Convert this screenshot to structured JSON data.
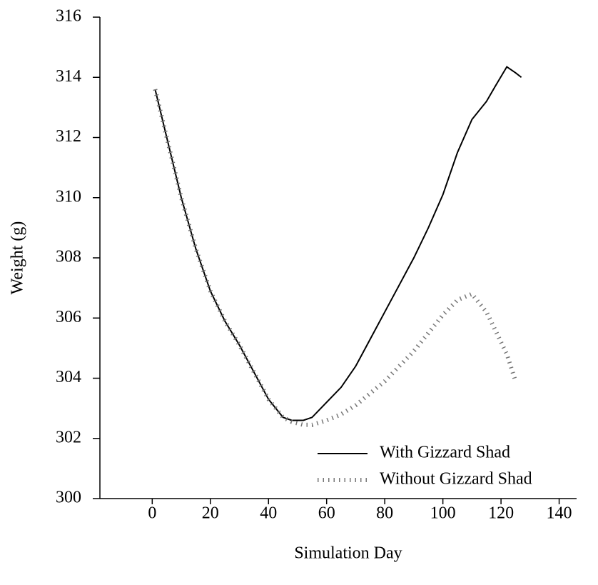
{
  "chart_data": {
    "type": "line",
    "x_label": "Simulation Day",
    "y_label": "Weight (g)",
    "x": [
      1,
      5,
      10,
      15,
      20,
      25,
      30,
      35,
      40,
      45,
      48,
      52,
      55,
      60,
      65,
      70,
      75,
      80,
      85,
      90,
      95,
      100,
      105,
      110,
      115,
      118,
      122,
      125,
      127
    ],
    "series": [
      {
        "name": "With Gizzard Shad",
        "color": "#000000",
        "style": "solid",
        "values": [
          313.6,
          312.0,
          310.0,
          308.3,
          306.9,
          305.9,
          305.1,
          304.2,
          303.3,
          302.7,
          302.6,
          302.6,
          302.7,
          303.2,
          303.7,
          304.4,
          305.3,
          306.2,
          307.1,
          308.0,
          309.0,
          310.1,
          311.5,
          312.6,
          313.2,
          313.7,
          314.35,
          314.15,
          314.0
        ]
      },
      {
        "name": "Without Gizzard Shad",
        "color": "#777777",
        "style": "dotted",
        "values": [
          313.6,
          312.0,
          310.0,
          308.3,
          306.9,
          305.9,
          305.1,
          304.2,
          303.3,
          302.7,
          302.55,
          302.45,
          302.45,
          302.6,
          302.8,
          303.1,
          303.5,
          303.9,
          304.4,
          304.9,
          305.5,
          306.1,
          306.6,
          306.8,
          306.2,
          305.6,
          304.8,
          303.9,
          null
        ]
      }
    ],
    "xlim": [
      -18,
      146
    ],
    "xticks": [
      0,
      20,
      40,
      60,
      80,
      100,
      120,
      140
    ],
    "ylim": [
      300,
      316
    ],
    "yticks": [
      300,
      302,
      304,
      306,
      308,
      310,
      312,
      314,
      316
    ],
    "legend": "lower right"
  }
}
